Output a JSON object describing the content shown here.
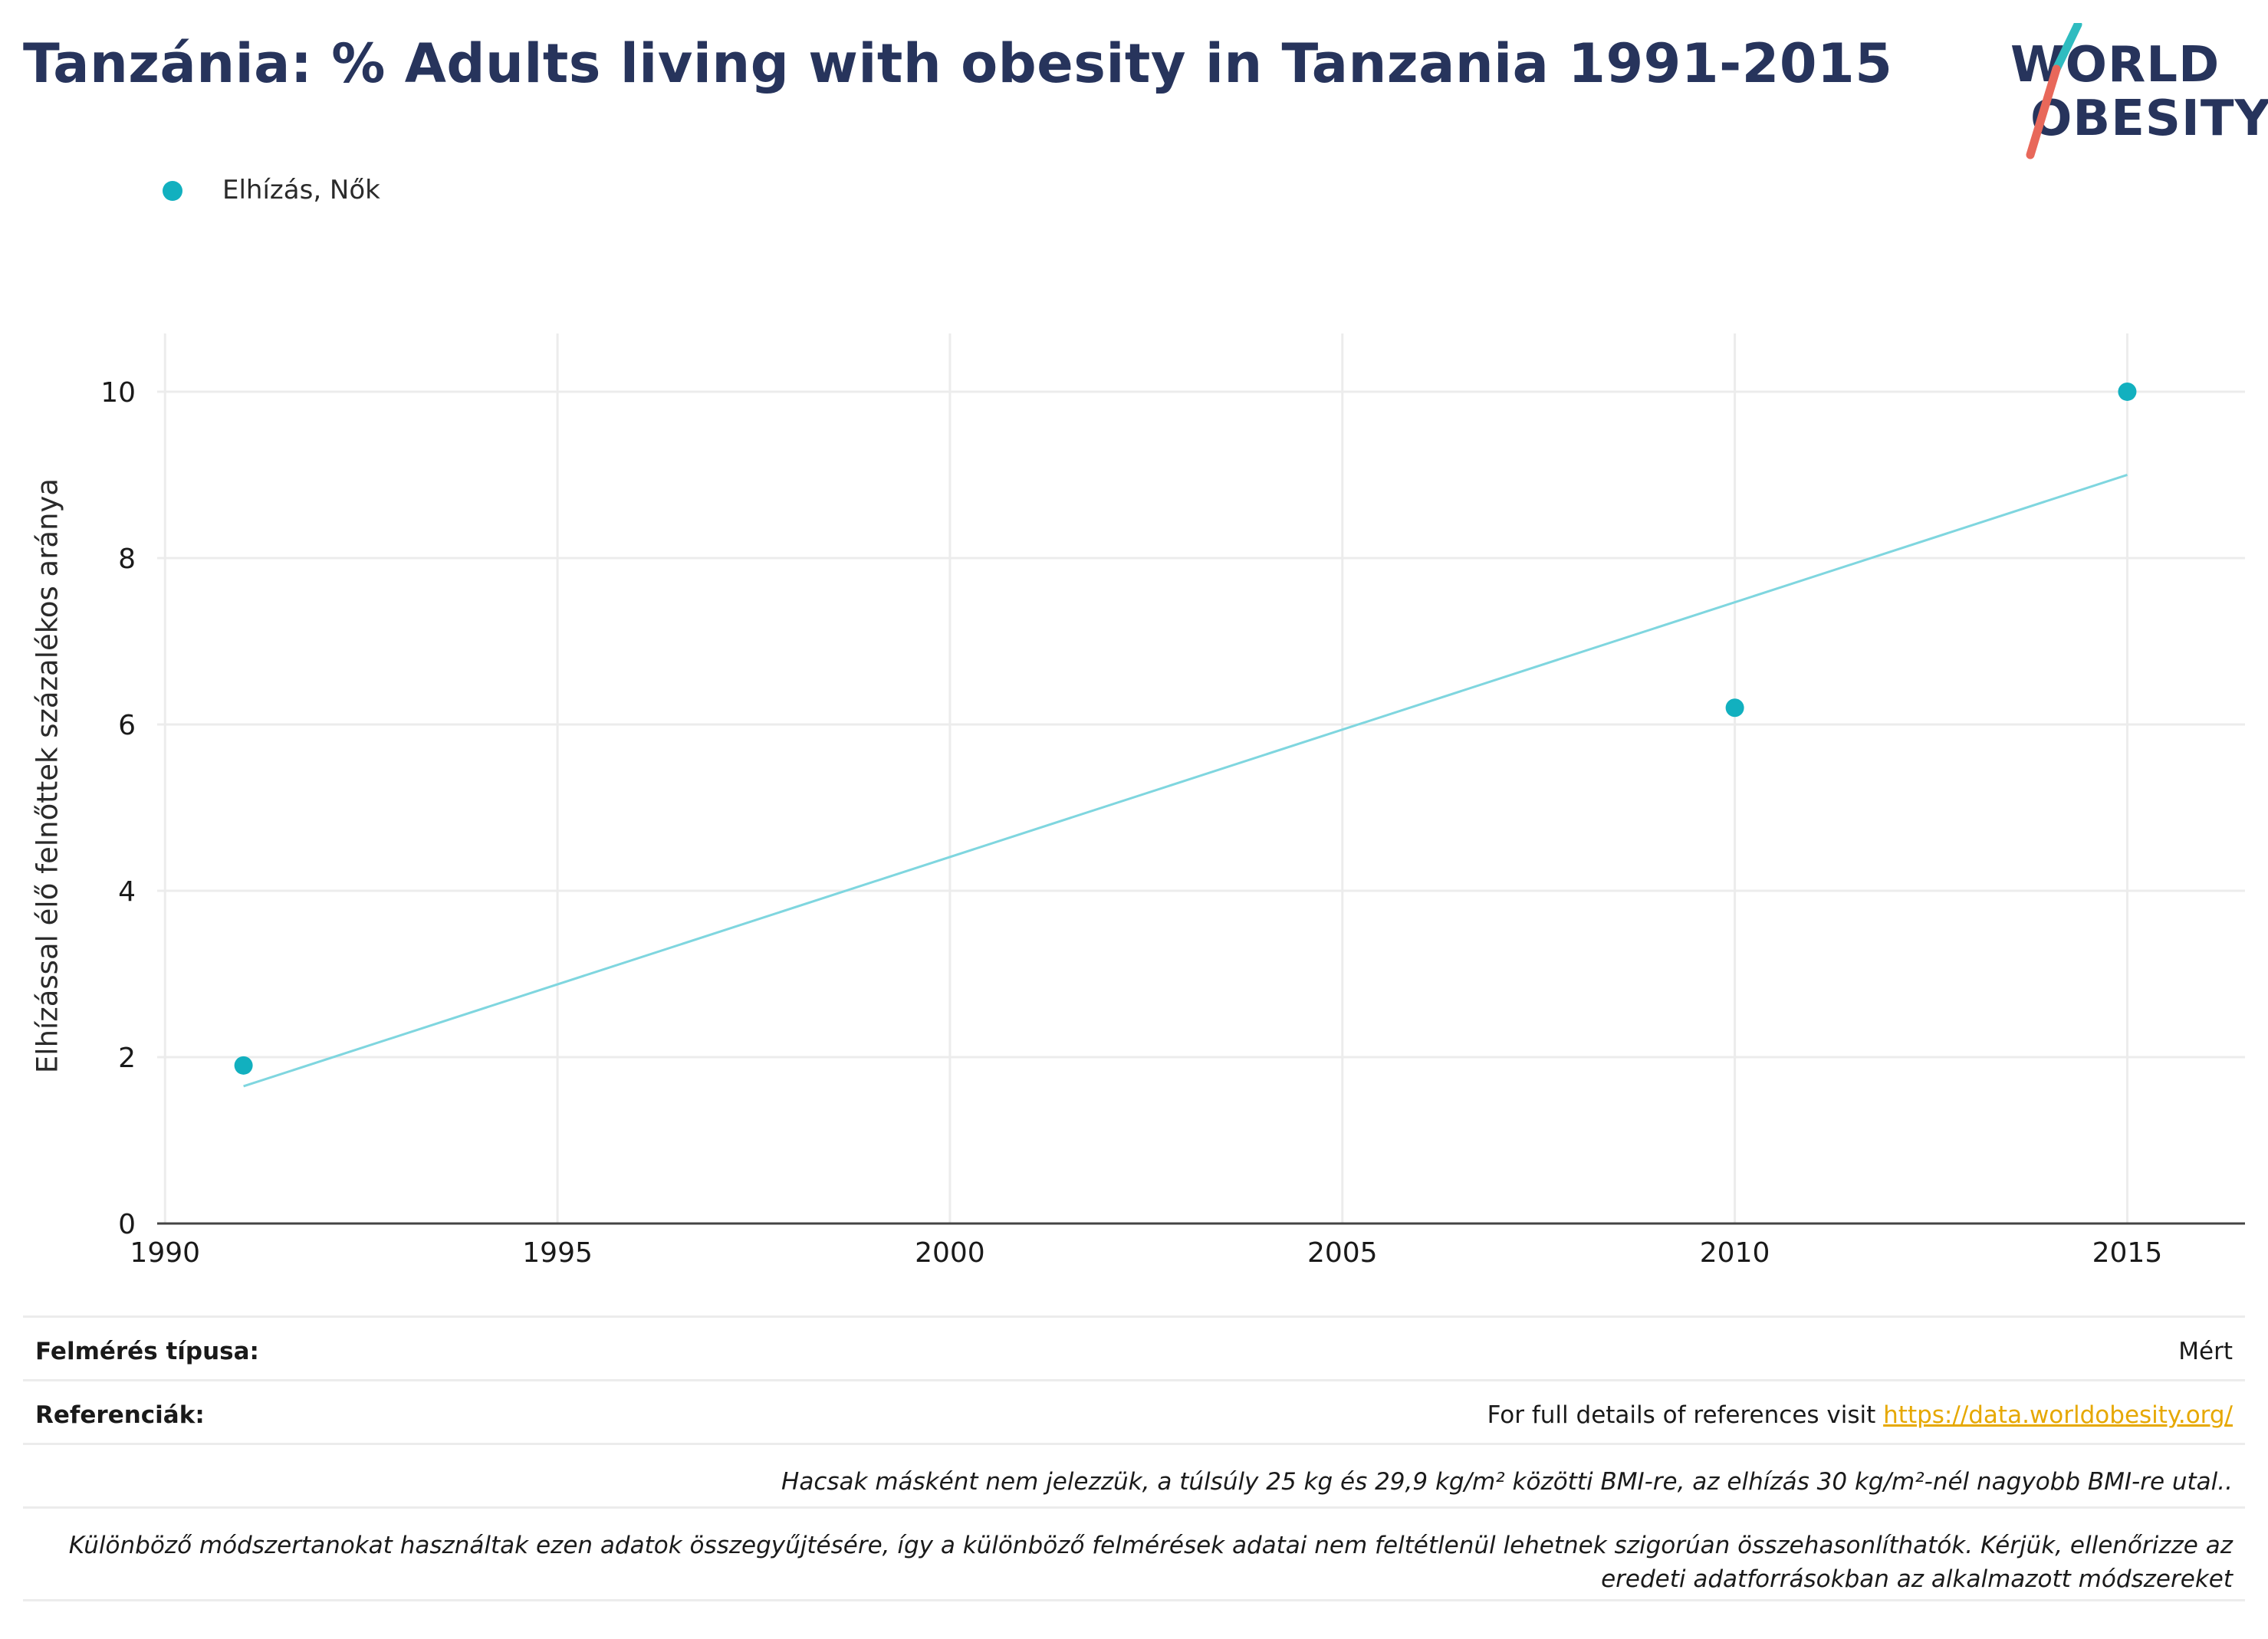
{
  "header": {
    "title": "Tanzánia: % Adults living with obesity in Tanzania 1991-2015"
  },
  "logo": {
    "line1": "WORLD",
    "line2": "OBESITY",
    "colors": {
      "text": "#27345c",
      "slash_top": "#2fbcc0",
      "slash_bottom": "#e8685a"
    }
  },
  "legend": {
    "items": [
      {
        "label": "Elhízás, Nők",
        "color": "#12b0bf"
      }
    ]
  },
  "chart_data": {
    "type": "scatter",
    "title": "Tanzánia: % Adults living with obesity in Tanzania 1991-2015",
    "ylabel": "Elhízással élő felnőttek százalékos aránya",
    "xlabel": "",
    "xlim": [
      1989.9,
      2016.5
    ],
    "ylim": [
      0,
      10.7
    ],
    "xticks": [
      1990,
      1995,
      2000,
      2005,
      2010,
      2015
    ],
    "yticks": [
      0,
      2,
      4,
      6,
      8,
      10
    ],
    "grid": true,
    "legend_position": "top-left",
    "series": [
      {
        "name": "Elhízás, Nők",
        "color": "#12b0bf",
        "points": [
          {
            "x": 1991,
            "y": 1.9
          },
          {
            "x": 2010,
            "y": 6.2
          },
          {
            "x": 2015,
            "y": 10.0
          }
        ],
        "trendline": {
          "color": "#7fd6df",
          "points": [
            {
              "x": 1991,
              "y": 1.65
            },
            {
              "x": 2015,
              "y": 9.0
            }
          ]
        }
      }
    ]
  },
  "footer": {
    "survey_type_label": "Felmérés típusa:",
    "survey_type_value": "Mért",
    "references_label": "Referenciák:",
    "references_text": "For full details of references visit ",
    "references_link": "https://data.worldobesity.org/",
    "note1": "Hacsak másként nem jelezzük, a túlsúly 25 kg és 29,9 kg/m² közötti BMI-re, az elhízás 30 kg/m²-nél nagyobb BMI-re utal..",
    "note2_line1": "Különböző módszertanokat használtak ezen adatok összegyűjtésére, így a különböző felmérések adatai nem feltétlenül lehetnek szigorúan összehasonlíthatók. Kérjük, ellenőrizze az",
    "note2_line2": "eredeti adatforrásokban az alkalmazott módszereket"
  }
}
